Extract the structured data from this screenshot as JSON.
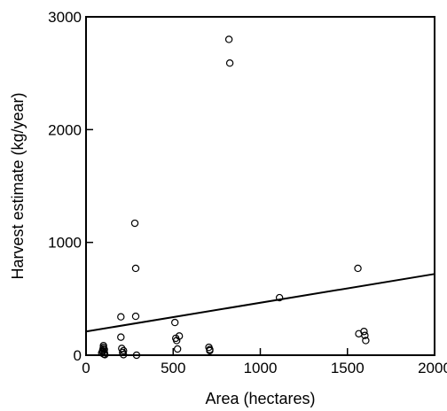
{
  "chart_data": {
    "type": "scatter",
    "title": "",
    "xlabel": "Area (hectares)",
    "ylabel": "Harvest estimate (kg/year)",
    "xlim": [
      0,
      2000
    ],
    "ylim": [
      0,
      3000
    ],
    "xticks": [
      0,
      500,
      1000,
      1500,
      2000
    ],
    "yticks": [
      0,
      1000,
      2000,
      3000
    ],
    "xtick_labels": [
      "0",
      "500",
      "1000",
      "1500",
      "2000"
    ],
    "ytick_labels": [
      "0",
      "1000",
      "2000",
      "3000"
    ],
    "grid": false,
    "legend": "none",
    "colors": {
      "marker": "#000000",
      "line": "#000000",
      "axes": "#000000"
    },
    "series": [
      {
        "kind": "points",
        "marker": "open-circle",
        "x": [
          90,
          95,
          95,
          98,
          100,
          100,
          102,
          105,
          105,
          108,
          200,
          200,
          205,
          210,
          215,
          215,
          280,
          285,
          285,
          290,
          510,
          515,
          520,
          525,
          535,
          705,
          710,
          710,
          820,
          825,
          1110,
          1560,
          1565,
          1595,
          1600,
          1605
        ],
        "y": [
          20,
          30,
          40,
          55,
          70,
          85,
          10,
          25,
          50,
          5,
          340,
          160,
          60,
          25,
          5,
          40,
          1170,
          770,
          345,
          0,
          290,
          150,
          130,
          55,
          170,
          70,
          50,
          40,
          2800,
          2590,
          510,
          770,
          190,
          210,
          175,
          130
        ]
      },
      {
        "kind": "line",
        "x": [
          0,
          2000
        ],
        "y": [
          210,
          720
        ]
      }
    ]
  }
}
